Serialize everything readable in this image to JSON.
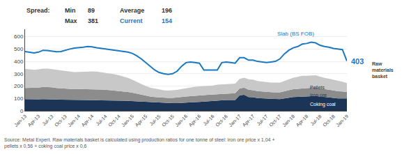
{
  "chart_data": {
    "type": "area",
    "stacked": true,
    "categories": [
      "Jan-13",
      null,
      null,
      "Apr-13",
      null,
      null,
      "Jul-13",
      null,
      null,
      "Oct-13",
      null,
      null,
      "Jan-14",
      null,
      null,
      "Apr-14",
      null,
      null,
      "Jul-14",
      null,
      null,
      "Oct-14",
      null,
      null,
      "Jan-15",
      null,
      null,
      "Apr-15",
      null,
      null,
      "Jul-15",
      null,
      null,
      "Oct-15",
      null,
      null,
      "Jan-16",
      null,
      null,
      "Apr-16",
      null,
      null,
      "Jul-16",
      null,
      null,
      "Oct-16",
      null,
      null,
      "Jan-17",
      null,
      null,
      "Apr-17",
      null,
      null,
      "Jul-17",
      null,
      null,
      "Oct-17",
      null,
      null,
      "Jan-18",
      null,
      null,
      "Apr-18",
      null,
      null,
      "Jul-18",
      null,
      null,
      "Oct-18",
      null,
      null,
      "Jan-19"
    ],
    "series": [
      {
        "name": "Coking coal",
        "color": "#1c3557",
        "values": [
          95,
          93,
          92,
          93,
          95,
          95,
          95,
          92,
          90,
          90,
          88,
          88,
          88,
          87,
          86,
          86,
          86,
          85,
          85,
          84,
          84,
          82,
          82,
          80,
          78,
          75,
          72,
          70,
          68,
          67,
          65,
          63,
          62,
          62,
          62,
          63,
          65,
          67,
          70,
          72,
          75,
          78,
          80,
          83,
          85,
          87,
          88,
          88,
          125,
          130,
          112,
          110,
          103,
          100,
          98,
          97,
          96,
          95,
          100,
          108,
          112,
          113,
          115,
          116,
          118,
          120,
          115,
          110,
          108,
          105,
          100,
          100,
          100
        ]
      },
      {
        "name": "Iron ore",
        "color": "#8c8c8c",
        "values": [
          90,
          92,
          92,
          95,
          98,
          98,
          95,
          93,
          92,
          90,
          88,
          87,
          88,
          89,
          90,
          90,
          88,
          87,
          85,
          83,
          80,
          78,
          75,
          72,
          68,
          63,
          58,
          53,
          48,
          45,
          43,
          42,
          42,
          43,
          45,
          48,
          50,
          52,
          53,
          53,
          52,
          52,
          52,
          53,
          53,
          53,
          54,
          54,
          55,
          58,
          58,
          57,
          56,
          55,
          55,
          54,
          54,
          55,
          58,
          60,
          63,
          65,
          68,
          68,
          68,
          67,
          65,
          63,
          62,
          60,
          58,
          56,
          52
        ]
      },
      {
        "name": "Pellets",
        "color": "#c8c8c8",
        "values": [
          155,
          150,
          148,
          148,
          148,
          148,
          148,
          148,
          145,
          143,
          140,
          138,
          138,
          140,
          142,
          143,
          143,
          140,
          138,
          135,
          132,
          128,
          122,
          115,
          105,
          95,
          85,
          77,
          72,
          68,
          65,
          62,
          60,
          60,
          62,
          65,
          68,
          70,
          71,
          72,
          72,
          72,
          72,
          75,
          75,
          76,
          77,
          78,
          78,
          80,
          85,
          86,
          82,
          80,
          79,
          78,
          78,
          79,
          83,
          88,
          93,
          97,
          100,
          100,
          100,
          100,
          97,
          93,
          90,
          88,
          84,
          80,
          72
        ]
      },
      {
        "name": "Slab (BS FOB)",
        "type": "line",
        "color": "#1a78c2",
        "values": [
          480,
          472,
          468,
          475,
          490,
          488,
          482,
          478,
          480,
          492,
          500,
          508,
          510,
          515,
          520,
          518,
          510,
          505,
          500,
          495,
          490,
          485,
          480,
          475,
          465,
          445,
          420,
          390,
          360,
          330,
          310,
          300,
          295,
          300,
          320,
          360,
          390,
          395,
          390,
          385,
          330,
          330,
          330,
          330,
          390,
          395,
          390,
          385,
          430,
          430,
          410,
          410,
          400,
          395,
          390,
          395,
          400,
          420,
          460,
          490,
          510,
          520,
          540,
          545,
          555,
          550,
          530,
          520,
          515,
          505,
          500,
          495,
          403
        ]
      }
    ],
    "end_label": "403",
    "side_label": "Raw\nmaterials\nbasket",
    "header": {
      "label": "Spread:",
      "rows": [
        [
          {
            "label": "Min",
            "value": 89
          },
          {
            "label": "Average",
            "value": 196
          }
        ],
        [
          {
            "label": "Max",
            "value": 381
          },
          {
            "label": "Current",
            "value": 154,
            "color": "#1a78c2"
          }
        ]
      ]
    },
    "source": "Source: Metal Expert. Raw materials basket is calculated using production ratios for one tonne of steel: iron ore price x 1,04 +\npellets x 0,56 + coking coal price x 0,6",
    "ylim": [
      0,
      660
    ],
    "yticks": [
      0,
      100,
      200,
      300,
      400,
      500,
      600
    ],
    "grid": true
  }
}
